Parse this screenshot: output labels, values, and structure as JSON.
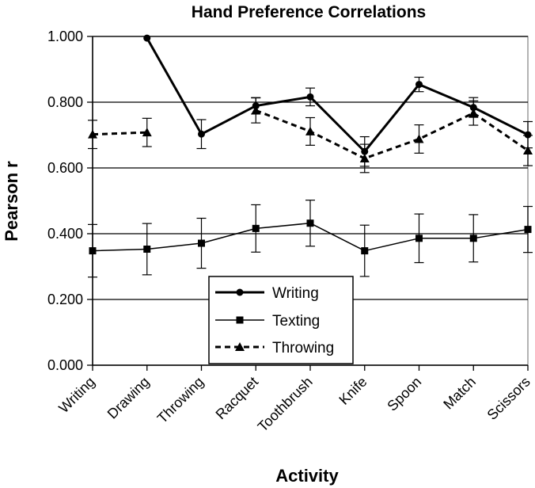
{
  "chart_data": {
    "type": "line",
    "title": "Hand Preference Correlations",
    "xlabel": "Activity",
    "ylabel": "Pearson r",
    "categories": [
      "Writing",
      "Drawing",
      "Throwing",
      "Racquet",
      "Toothbrush",
      "Knife",
      "Spoon",
      "Match",
      "Scissors"
    ],
    "ylim": [
      0,
      1
    ],
    "yticks": [
      "0.000",
      "0.200",
      "0.400",
      "0.600",
      "0.800",
      "1.000"
    ],
    "grid": true,
    "legend_position": "lower-center",
    "series": [
      {
        "name": "Writing",
        "marker": "circle",
        "line": "solid-thick",
        "values": [
          null,
          0.995,
          0.703,
          0.789,
          0.816,
          0.65,
          0.854,
          0.784,
          0.701
        ],
        "error": [
          null,
          null,
          0.044,
          0.025,
          0.027,
          0.045,
          0.022,
          0.03,
          0.04
        ]
      },
      {
        "name": "Texting",
        "marker": "square",
        "line": "solid-thin",
        "values": [
          0.348,
          0.353,
          0.371,
          0.416,
          0.432,
          0.348,
          0.386,
          0.386,
          0.413
        ],
        "error": [
          0.08,
          0.078,
          0.076,
          0.072,
          0.07,
          0.078,
          0.074,
          0.072,
          0.07
        ]
      },
      {
        "name": "Throwing",
        "marker": "triangle",
        "line": "dashed-thick",
        "values": [
          0.702,
          0.708,
          null,
          0.775,
          0.711,
          0.629,
          0.688,
          0.767,
          0.653
        ],
        "error": [
          0.043,
          0.043,
          null,
          0.038,
          0.042,
          0.043,
          0.043,
          0.037,
          0.046
        ]
      }
    ],
    "colors": {
      "line": "#000000",
      "grid": "#000000",
      "plot_border": "#9a9a9a",
      "background": "#ffffff"
    }
  }
}
